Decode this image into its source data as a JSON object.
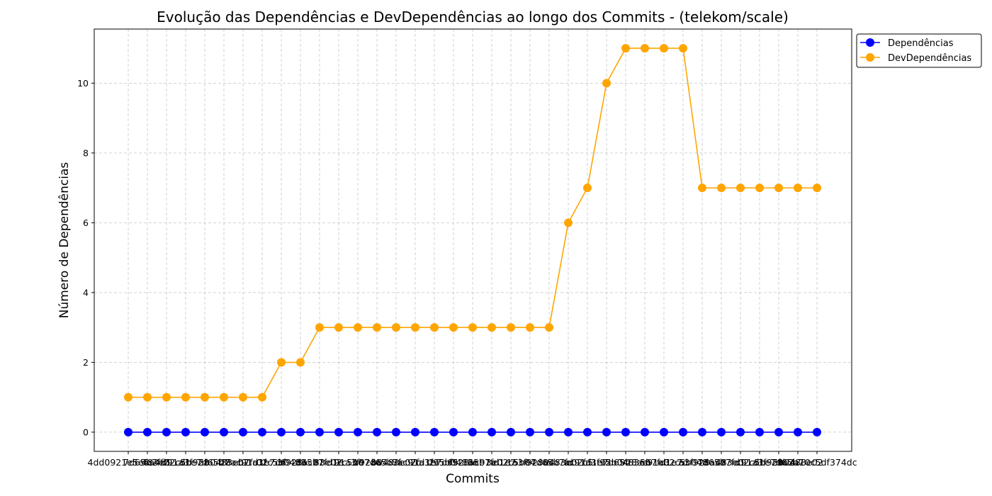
{
  "chart_data": {
    "type": "line",
    "title": "Evolução das Dependências e DevDependências ao longo dos Commits - (telekom/scale)",
    "xlabel": "Commits",
    "ylabel": "Número de Dependências",
    "ylim": [
      -0.55,
      11.55
    ],
    "yticks": [
      0,
      2,
      4,
      6,
      8,
      10
    ],
    "grid": true,
    "legend_position": "upper right (outside plot)",
    "x_tick_labels_note": "37 overlapping commit-hash labels rendered illegibly; first begins '4dd0...' and last ends '...f374dc'",
    "x_tick_first": "4dd0",
    "x_tick_last": "f374dc",
    "x_count": 37,
    "series": [
      {
        "name": "Dependências",
        "color": "#0000ff",
        "values": [
          0,
          0,
          0,
          0,
          0,
          0,
          0,
          0,
          0,
          0,
          0,
          0,
          0,
          0,
          0,
          0,
          0,
          0,
          0,
          0,
          0,
          0,
          0,
          0,
          0,
          0,
          0,
          0,
          0,
          0,
          0,
          0,
          0,
          0,
          0,
          0,
          0
        ]
      },
      {
        "name": "DevDependências",
        "color": "#ffa500",
        "values": [
          1,
          1,
          1,
          1,
          1,
          1,
          1,
          1,
          2,
          2,
          3,
          3,
          3,
          3,
          3,
          3,
          3,
          3,
          3,
          3,
          3,
          3,
          3,
          6,
          7,
          10,
          11,
          11,
          11,
          11,
          7,
          7,
          7,
          7,
          7,
          7,
          7
        ]
      }
    ]
  }
}
